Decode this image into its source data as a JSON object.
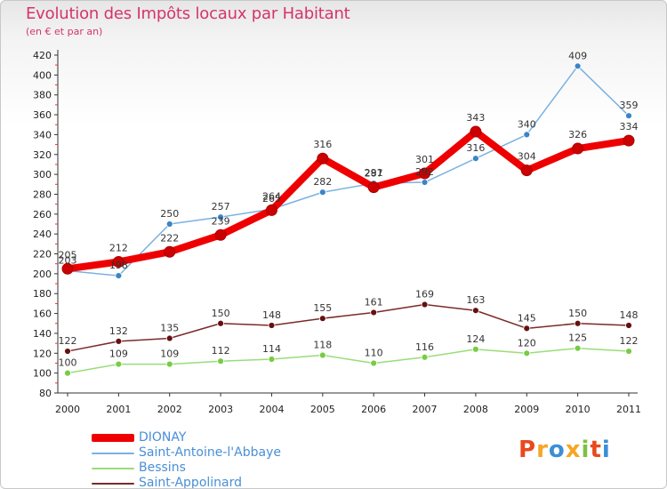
{
  "header": {
    "title": "Evolution des Impôts locaux par Habitant",
    "subtitle": "(en € et par an)"
  },
  "logo": {
    "text": "Proxiti",
    "colors": [
      "#e8491d",
      "#f5a623",
      "#3b8fd6",
      "#f5a623",
      "#7cc242",
      "#e8491d",
      "#3b8fd6"
    ]
  },
  "chart_data": {
    "type": "line",
    "title": "Evolution des Impôts locaux par Habitant",
    "subtitle": "(en € et par an)",
    "xlabel": "",
    "ylabel": "",
    "x": [
      "2000",
      "2001",
      "2002",
      "2003",
      "2004",
      "2005",
      "2006",
      "2007",
      "2008",
      "2009",
      "2010",
      "2011"
    ],
    "ylim": [
      80,
      420
    ],
    "yticks": [
      80,
      100,
      120,
      140,
      160,
      180,
      200,
      220,
      240,
      260,
      280,
      300,
      320,
      340,
      360,
      380,
      400,
      420
    ],
    "grid": false,
    "legend_position": "bottom-left",
    "series": [
      {
        "name": "DIONAY",
        "color": "#ee0000",
        "line_width": 8,
        "marker_color": "#cc0000",
        "marker_radius": 6,
        "values": [
          205,
          212,
          222,
          239,
          264,
          316,
          287,
          301,
          343,
          304,
          326,
          334
        ],
        "labels": [
          "205",
          "212",
          "222",
          "239",
          "264",
          "316",
          "287",
          "301",
          "343",
          "304",
          "326",
          "334"
        ],
        "label_offsets": [
          -12,
          -12,
          -12,
          -12,
          -12,
          -12,
          -12,
          -12,
          -12,
          -12,
          -12,
          -12
        ]
      },
      {
        "name": "Saint-Antoine-l'Abbaye",
        "color": "#7bb1e0",
        "line_width": 1.5,
        "marker_color": "#3b84c8",
        "marker_radius": 3.5,
        "values": [
          203,
          198,
          250,
          257,
          265,
          282,
          291,
          292,
          316,
          340,
          409,
          359
        ],
        "labels": [
          "203",
          "198",
          "250",
          "257",
          "265",
          "282",
          "291",
          "292",
          "316",
          "340",
          "409",
          "359"
        ],
        "label_offsets": [
          -8,
          -8,
          -8,
          -8,
          -8,
          -8,
          -8,
          -8,
          -8,
          -8,
          -8,
          -8
        ]
      },
      {
        "name": "Bessins",
        "color": "#99dd77",
        "line_width": 1.5,
        "marker_color": "#77cc44",
        "marker_radius": 3.5,
        "values": [
          100,
          109,
          109,
          112,
          114,
          118,
          110,
          116,
          124,
          120,
          125,
          122
        ],
        "labels": [
          "100",
          "109",
          "109",
          "112",
          "114",
          "118",
          "110",
          "116",
          "124",
          "120",
          "125",
          "122"
        ],
        "label_offsets": [
          -8,
          -8,
          -8,
          -8,
          -8,
          -8,
          -8,
          -8,
          -8,
          -8,
          -8,
          -8
        ]
      },
      {
        "name": "Saint-Appolinard",
        "color": "#7a2a2a",
        "line_width": 1.5,
        "marker_color": "#661010",
        "marker_radius": 3.5,
        "values": [
          122,
          132,
          135,
          150,
          148,
          155,
          161,
          169,
          163,
          145,
          150,
          148
        ],
        "labels": [
          "122",
          "132",
          "135",
          "150",
          "148",
          "155",
          "161",
          "169",
          "163",
          "145",
          "150",
          "148"
        ],
        "label_offsets": [
          -8,
          -8,
          -8,
          -8,
          -8,
          -8,
          -8,
          -8,
          -8,
          -8,
          -8,
          -8
        ]
      }
    ]
  }
}
